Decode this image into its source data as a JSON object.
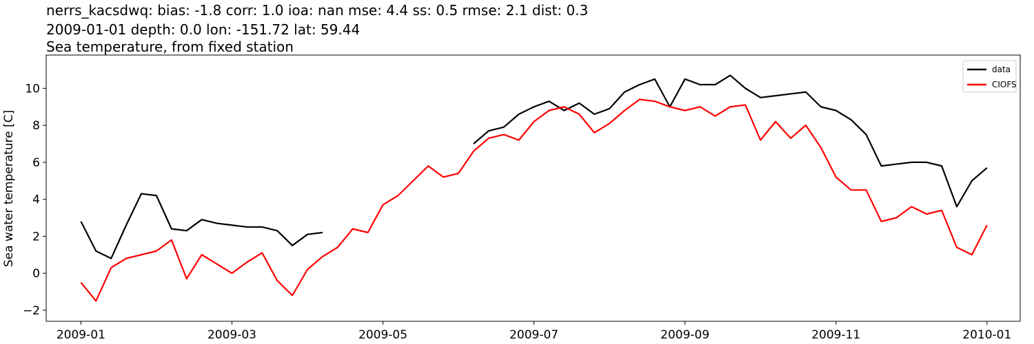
{
  "chart_data": {
    "type": "line",
    "title": [
      "nerrs_kacsdwq: bias: -1.8  corr: 1.0  ioa: nan  mse: 4.4  ss: 0.5  rmse: 2.1  dist: 0.3",
      "2009-01-01 depth: 0.0 lon: -151.72 lat: 59.44",
      "Sea temperature, from fixed station"
    ],
    "y_label": "Sea water temperature [C]",
    "x": [
      0,
      0.2,
      0.4,
      0.6,
      0.8,
      1,
      1.2,
      1.4,
      1.6,
      1.8,
      2,
      2.2,
      2.4,
      2.6,
      2.8,
      3,
      3.2,
      3.4,
      3.6,
      3.8,
      4,
      4.2,
      4.4,
      4.6,
      4.8,
      5,
      5.2,
      5.4,
      5.6,
      5.8,
      6,
      6.2,
      6.4,
      6.6,
      6.8,
      7,
      7.2,
      7.4,
      7.6,
      7.8,
      8,
      8.2,
      8.4,
      8.6,
      8.8,
      9,
      9.2,
      9.4,
      9.6,
      9.8,
      10,
      10.2,
      10.4,
      10.6,
      10.8,
      11,
      11.2,
      11.4,
      11.6,
      11.8,
      12
    ],
    "series": [
      {
        "name": "data",
        "color": "#000000",
        "values": [
          2.8,
          1.2,
          0.8,
          2.6,
          4.3,
          4.2,
          2.4,
          2.3,
          2.9,
          2.7,
          2.6,
          2.5,
          2.5,
          2.3,
          1.5,
          2.1,
          2.2,
          null,
          null,
          null,
          null,
          null,
          null,
          null,
          null,
          null,
          7.0,
          7.7,
          7.9,
          8.6,
          9.0,
          9.3,
          8.8,
          9.2,
          8.6,
          8.9,
          9.8,
          10.2,
          10.5,
          9.0,
          10.5,
          10.2,
          10.2,
          10.7,
          10.0,
          9.5,
          9.6,
          9.7,
          9.8,
          9.0,
          8.8,
          8.3,
          7.5,
          5.8,
          5.9,
          6.0,
          6.0,
          5.8,
          3.6,
          5.0,
          5.7
        ]
      },
      {
        "name": "CIOFS",
        "color": "#ff0000",
        "values": [
          -0.5,
          -1.5,
          0.3,
          0.8,
          1.0,
          1.2,
          1.8,
          -0.3,
          1.0,
          0.5,
          0.0,
          0.6,
          1.1,
          -0.4,
          -1.2,
          0.2,
          0.9,
          1.4,
          2.4,
          2.2,
          3.7,
          4.2,
          5.0,
          5.8,
          5.2,
          5.4,
          6.6,
          7.3,
          7.5,
          7.2,
          8.2,
          8.8,
          9.0,
          8.6,
          7.6,
          8.1,
          8.8,
          9.4,
          9.3,
          9.0,
          8.8,
          9.0,
          8.5,
          9.0,
          9.1,
          7.2,
          8.2,
          7.3,
          8.0,
          6.8,
          5.2,
          4.5,
          4.5,
          2.8,
          3.0,
          3.6,
          3.2,
          3.4,
          1.4,
          1.0,
          2.6
        ]
      }
    ],
    "xlim": [
      -0.46,
      12.44
    ],
    "xticks": [
      {
        "value": 0,
        "label": "2009-01"
      },
      {
        "value": 2,
        "label": "2009-03"
      },
      {
        "value": 4,
        "label": "2009-05"
      },
      {
        "value": 6,
        "label": "2009-07"
      },
      {
        "value": 8,
        "label": "2009-09"
      },
      {
        "value": 10,
        "label": "2009-11"
      },
      {
        "value": 12,
        "label": "2010-01"
      }
    ],
    "ylim": [
      -2.6,
      11.8
    ],
    "yticks": [
      {
        "value": -2,
        "label": "−2"
      },
      0,
      2,
      4,
      6,
      8,
      10
    ],
    "legend": "upper right"
  }
}
